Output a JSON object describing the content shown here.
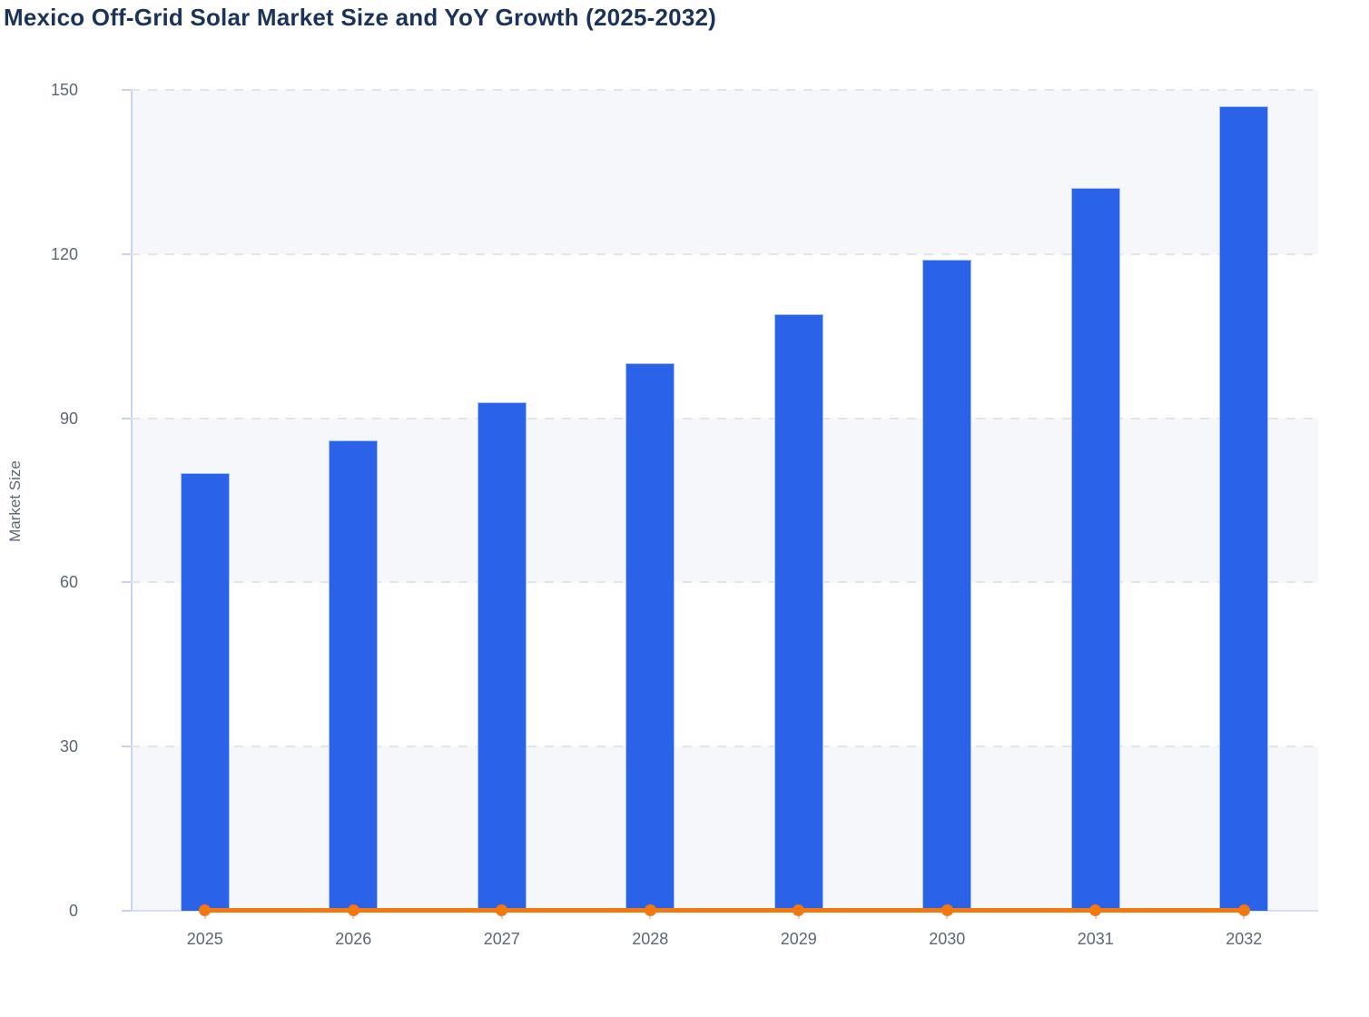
{
  "title": "Mexico Off-Grid Solar Market Size and YoY Growth (2025-2032)",
  "y_axis_title": "Market Size",
  "colors": {
    "title": "#1c3359",
    "label": "#5c6675",
    "bar": "#2a63e8",
    "bar_border": "#a4c0f4",
    "line": "#f5770f",
    "axis": "#c9d4ec",
    "grid": "#e2e4e9",
    "band": "#f5f7fa",
    "background": "#ffffff"
  },
  "chart_data": {
    "type": "bar",
    "title": "Mexico Off-Grid Solar Market Size and YoY Growth (2025-2032)",
    "xlabel": "",
    "ylabel": "Market Size",
    "categories": [
      "2025",
      "2026",
      "2027",
      "2028",
      "2029",
      "2030",
      "2031",
      "2032"
    ],
    "series": [
      {
        "name": "Market Size",
        "type": "bar",
        "color": "#2a63e8",
        "values": [
          80,
          86,
          93,
          100,
          109,
          119,
          132,
          147
        ]
      },
      {
        "name": "YoY Growth",
        "type": "line",
        "color": "#f5770f",
        "values": [
          0,
          0,
          0,
          0,
          0,
          0,
          0,
          0
        ]
      }
    ],
    "ylim": [
      0,
      150
    ],
    "yticks": [
      0,
      30,
      60,
      90,
      120,
      150
    ],
    "grid": "horizontal-dashed",
    "plot_bands": "alternating light bands every 30 units (0-30, 60-90, 120-150 shaded)",
    "legend_position": "none"
  }
}
